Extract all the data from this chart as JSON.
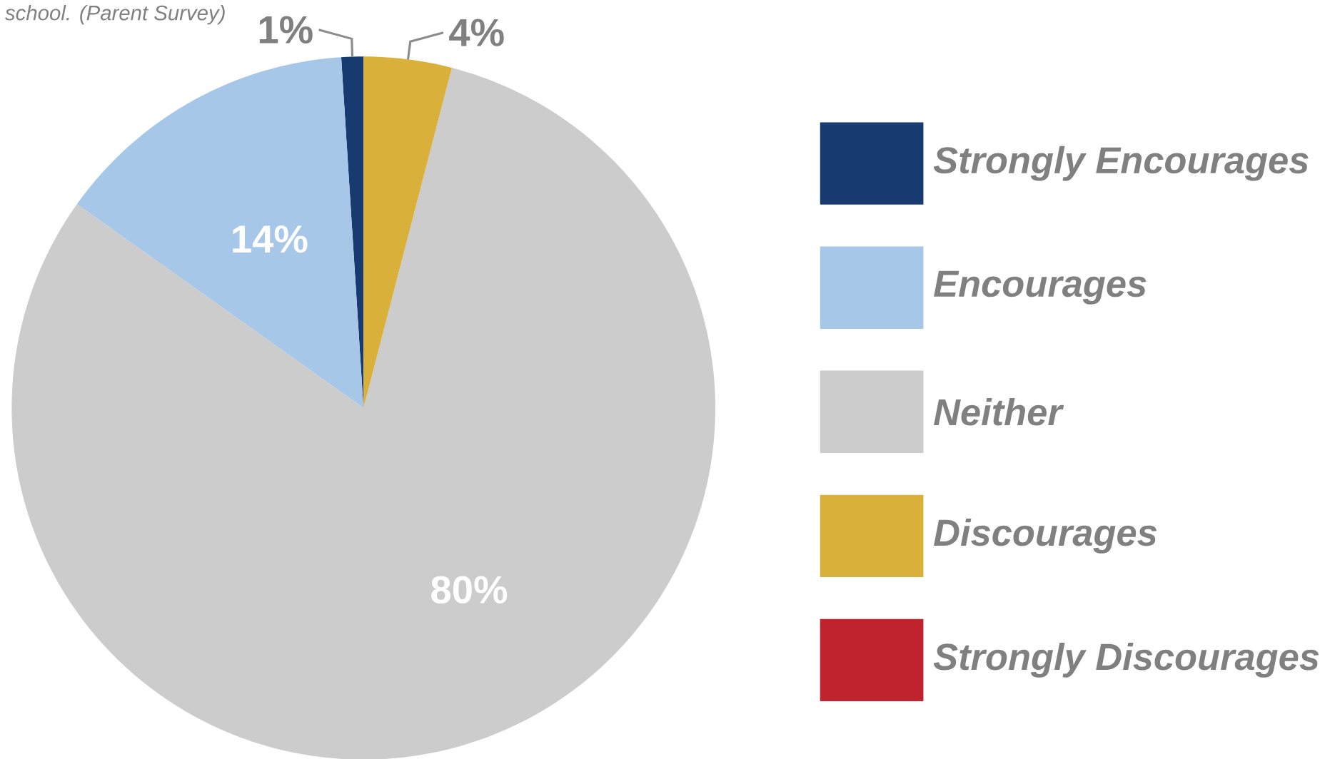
{
  "chart_data": {
    "type": "pie",
    "subtitle": "school. (Parent Survey)",
    "categories": [
      "Strongly Encourages",
      "Encourages",
      "Neither",
      "Discourages",
      "Strongly Discourages"
    ],
    "values": [
      1,
      14,
      80,
      4,
      0
    ],
    "value_labels": [
      "1%",
      "14%",
      "80%",
      "4%",
      null
    ],
    "colors": [
      "#173a70",
      "#a7c7e8",
      "#cccccc",
      "#d8b03a",
      "#c0232e"
    ],
    "legend": "right"
  }
}
